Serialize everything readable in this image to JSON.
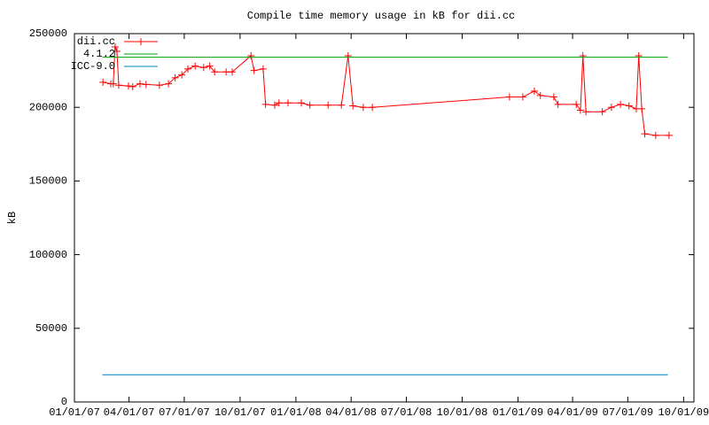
{
  "chart_data": {
    "type": "line",
    "title": "Compile time memory usage in kB for dii.cc",
    "y_label": "kB",
    "ylim": [
      0,
      250000
    ],
    "yticks": [
      0,
      50000,
      100000,
      150000,
      200000,
      250000
    ],
    "xlim": [
      "01/01/07",
      "10/18/09"
    ],
    "xticks": [
      "01/01/07",
      "04/01/07",
      "07/01/07",
      "10/01/07",
      "01/01/08",
      "04/01/08",
      "07/01/08",
      "10/01/08",
      "01/01/09",
      "04/01/09",
      "07/01/09",
      "10/01/09"
    ],
    "grid": false,
    "legend": "top-left",
    "series": [
      {
        "name": "dii.cc",
        "color": "#ff0000",
        "marker": "plus",
        "x": [
          "02/17/07",
          "03/02/07",
          "03/06/07",
          "03/09/07",
          "03/12/07",
          "03/15/07",
          "03/31/07",
          "04/07/07",
          "04/19/07",
          "04/29/07",
          "05/21/07",
          "06/05/07",
          "06/16/07",
          "06/27/07",
          "07/07/07",
          "07/19/07",
          "08/02/07",
          "08/12/07",
          "08/20/07",
          "09/08/07",
          "09/18/07",
          "10/19/07",
          "10/24/07",
          "11/08/07",
          "11/12/07",
          "11/27/07",
          "12/04/07",
          "12/19/07",
          "01/10/08",
          "01/24/08",
          "02/23/08",
          "03/16/08",
          "03/27/08",
          "04/04/08",
          "04/21/08",
          "05/06/08",
          "12/18/08",
          "01/09/09",
          "01/28/09",
          "02/07/09",
          "03/01/09",
          "03/08/09",
          "04/07/09",
          "04/14/09",
          "04/18/09",
          "04/23/09",
          "05/20/09",
          "06/04/09",
          "06/19/09",
          "07/03/09",
          "07/15/09",
          "07/19/09",
          "07/24/09",
          "07/29/09",
          "08/16/09",
          "09/07/09"
        ],
        "values": [
          217000,
          216000,
          216000,
          241000,
          238000,
          215000,
          214500,
          214000,
          216000,
          215500,
          215000,
          216000,
          220000,
          222000,
          226000,
          228000,
          227000,
          228000,
          224000,
          224000,
          224000,
          235000,
          225000,
          226000,
          202000,
          201500,
          203000,
          203000,
          203000,
          201500,
          201500,
          201500,
          235000,
          201000,
          200000,
          200000,
          207000,
          207000,
          211000,
          208000,
          207000,
          202000,
          202000,
          198000,
          235000,
          197000,
          197000,
          200000,
          202000,
          201000,
          199000,
          235000,
          199000,
          182000,
          181000,
          181000
        ]
      },
      {
        "name": "4.1.2",
        "color": "#00a000",
        "x": [
          "02/16/07",
          "09/05/09"
        ],
        "values": [
          234000,
          234000
        ]
      },
      {
        "name": "ICC-9.0",
        "color": "#0080c0",
        "x": [
          "02/16/07",
          "09/05/09"
        ],
        "values": [
          18500,
          18500
        ]
      }
    ]
  }
}
